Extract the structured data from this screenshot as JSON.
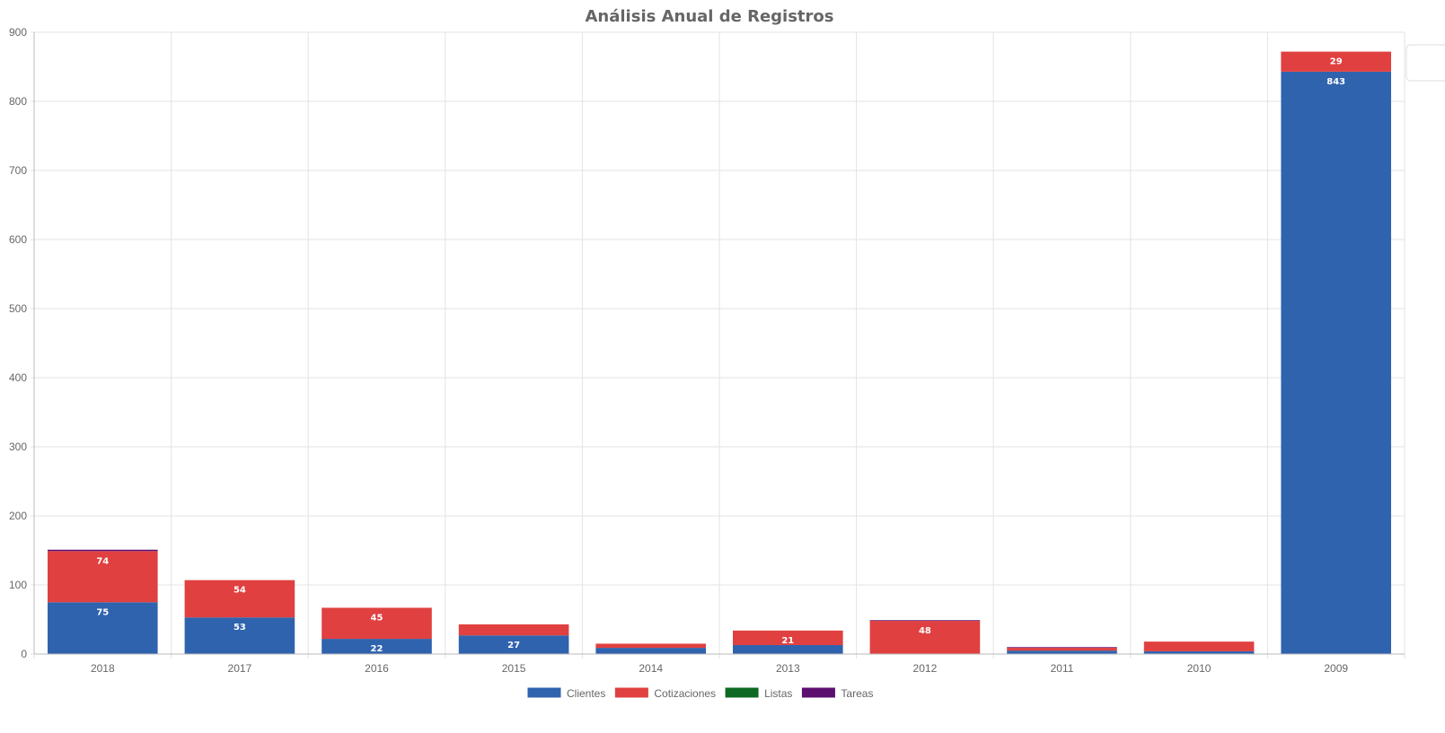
{
  "chart_data": {
    "type": "bar",
    "stacked": true,
    "title": "Análisis Anual de Registros",
    "xlabel": "",
    "ylabel": "",
    "ylim": [
      0,
      900
    ],
    "yticks": [
      0,
      100,
      200,
      300,
      400,
      500,
      600,
      700,
      800,
      900
    ],
    "grid": true,
    "legend": "bottom",
    "categories": [
      "2018",
      "2017",
      "2016",
      "2015",
      "2014",
      "2013",
      "2012",
      "2011",
      "2010",
      "2009"
    ],
    "series": [
      {
        "name": "Clientes",
        "color": "#3063ae",
        "values": [
          75,
          53,
          22,
          27,
          9,
          13,
          0,
          5,
          4,
          843
        ]
      },
      {
        "name": "Cotizaciones",
        "color": "#e04040",
        "values": [
          74,
          54,
          45,
          16,
          6,
          21,
          48,
          4,
          14,
          29
        ]
      },
      {
        "name": "Listas",
        "color": "#0e6a23",
        "values": [
          0,
          0,
          0,
          0,
          0,
          0,
          0,
          0,
          0,
          0
        ]
      },
      {
        "name": "Tareas",
        "color": "#5c0f6e",
        "values": [
          2,
          0,
          0,
          0,
          0,
          0,
          1,
          1,
          0,
          0
        ]
      }
    ],
    "label_min": 20
  }
}
